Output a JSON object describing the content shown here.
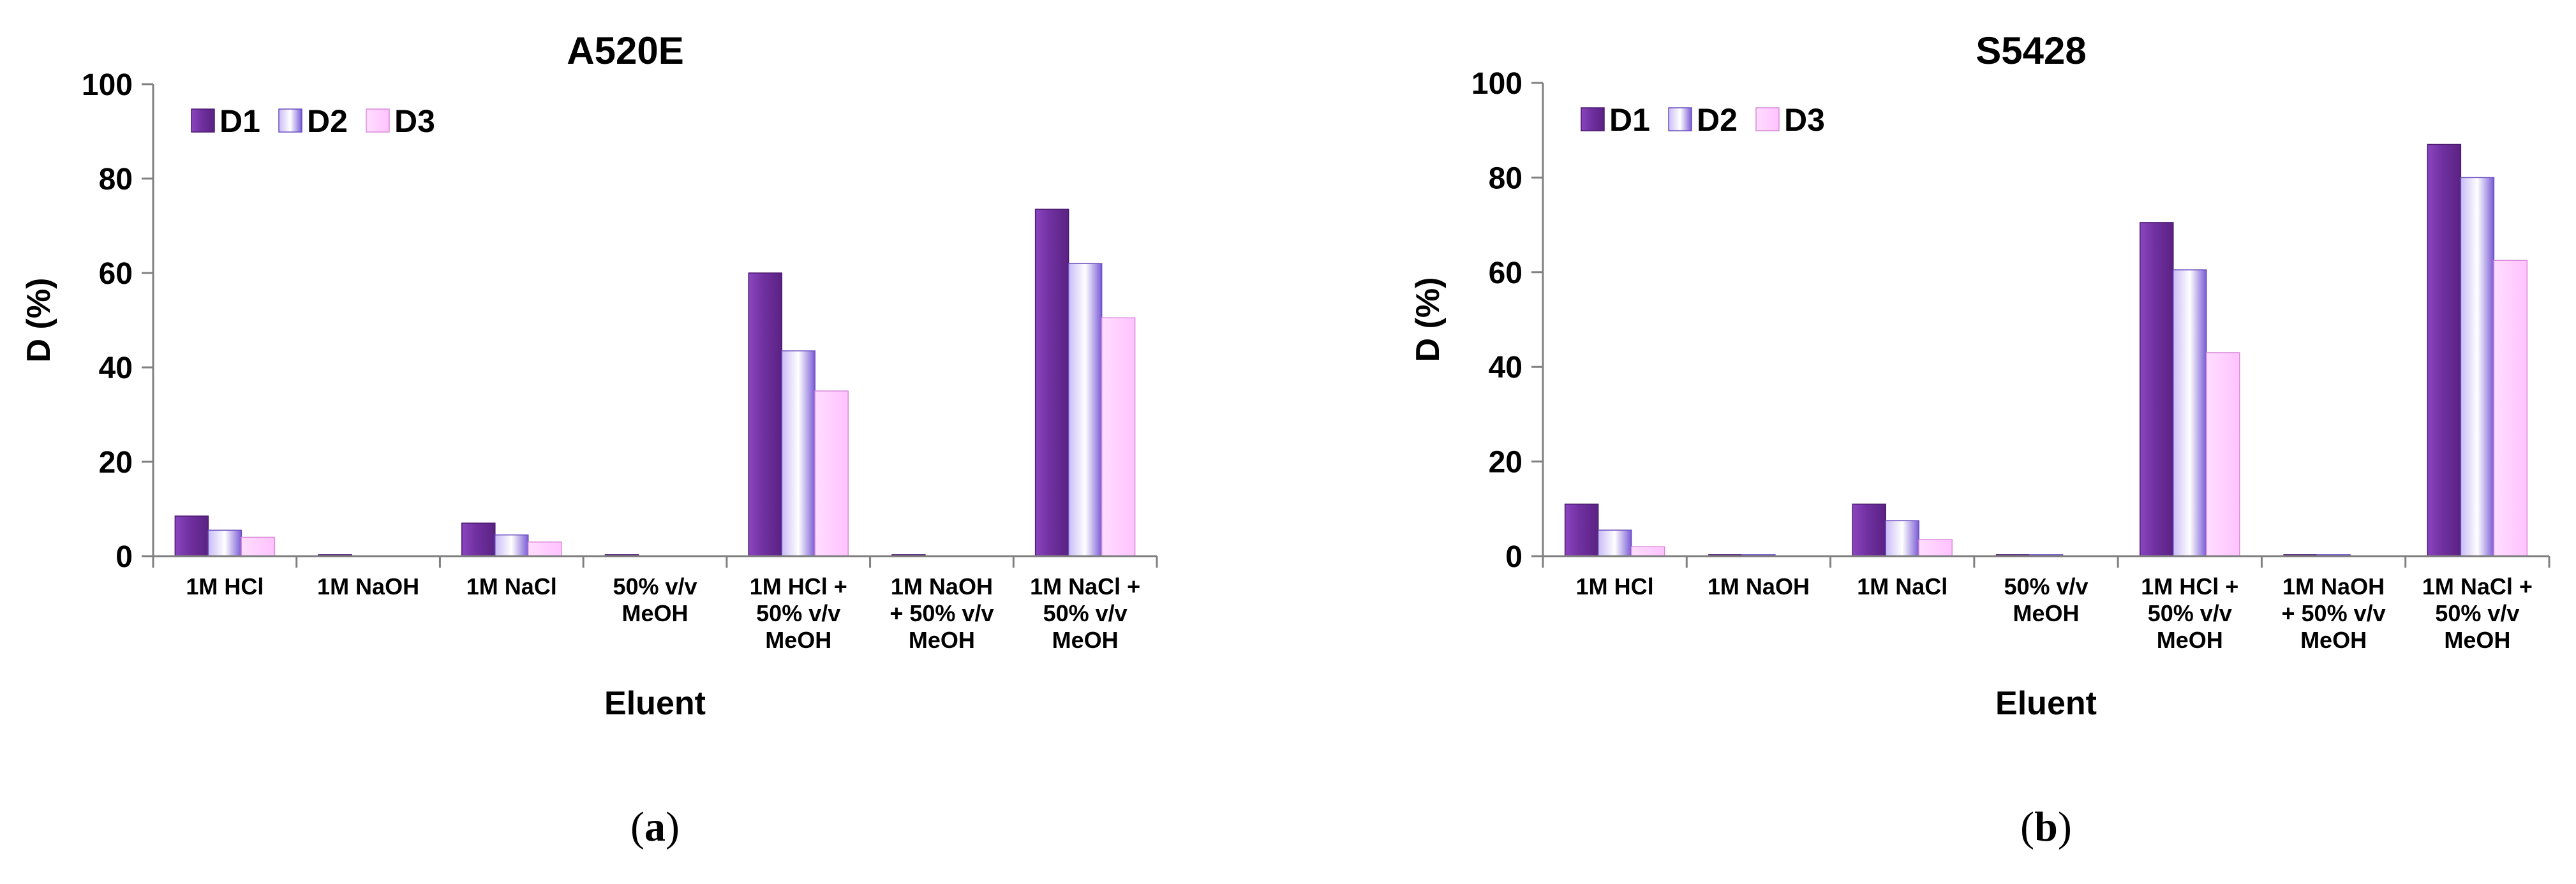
{
  "series_colors": {
    "D1": "#7030A0",
    "D2": "#9F8CE8",
    "D3": "#FFCCFF"
  },
  "chart_data": [
    {
      "type": "bar",
      "title": "A520E",
      "xlabel": "Eluent",
      "ylabel": "D (%)",
      "ylim": [
        0,
        100
      ],
      "yticks": [
        "0",
        "20",
        "40",
        "60",
        "80",
        "100"
      ],
      "legend_position": "top-left",
      "categories": [
        [
          "1M HCl"
        ],
        [
          "1M NaOH"
        ],
        [
          "1M NaCl"
        ],
        [
          "50% v/v",
          "MeOH"
        ],
        [
          "1M HCl +",
          "50% v/v",
          "MeOH"
        ],
        [
          "1M NaOH",
          "+ 50% v/v",
          "MeOH"
        ],
        [
          "1M NaCl +",
          "50% v/v",
          "MeOH"
        ]
      ],
      "series": [
        {
          "name": "D1",
          "values": [
            8.5,
            0.3,
            7,
            0.3,
            60,
            0.3,
            73.5
          ]
        },
        {
          "name": "D2",
          "values": [
            5.5,
            0,
            4.5,
            0,
            43.5,
            0,
            62
          ]
        },
        {
          "name": "D3",
          "values": [
            4,
            0,
            3,
            0,
            35,
            0,
            50.5
          ]
        }
      ],
      "panel_label": {
        "open": "(",
        "letter": "a",
        "close": ")"
      }
    },
    {
      "type": "bar",
      "title": "S5428",
      "xlabel": "Eluent",
      "ylabel": "D (%)",
      "ylim": [
        0,
        100
      ],
      "yticks": [
        "0",
        "20",
        "40",
        "60",
        "80",
        "100"
      ],
      "legend_position": "top-left",
      "categories": [
        [
          "1M HCl"
        ],
        [
          "1M NaOH"
        ],
        [
          "1M NaCl"
        ],
        [
          "50% v/v",
          "MeOH"
        ],
        [
          "1M HCl +",
          "50% v/v",
          "MeOH"
        ],
        [
          "1M NaOH",
          "+ 50% v/v",
          "MeOH"
        ],
        [
          "1M NaCl +",
          "50% v/v",
          "MeOH"
        ]
      ],
      "series": [
        {
          "name": "D1",
          "values": [
            11,
            0.3,
            11,
            0.3,
            70.5,
            0.3,
            87
          ]
        },
        {
          "name": "D2",
          "values": [
            5.5,
            0.3,
            7.5,
            0.3,
            60.5,
            0.3,
            80
          ]
        },
        {
          "name": "D3",
          "values": [
            2,
            0,
            3.5,
            0,
            43,
            0,
            62.5
          ]
        }
      ],
      "panel_label": {
        "open": "(",
        "letter": "b",
        "close": ")"
      }
    }
  ]
}
